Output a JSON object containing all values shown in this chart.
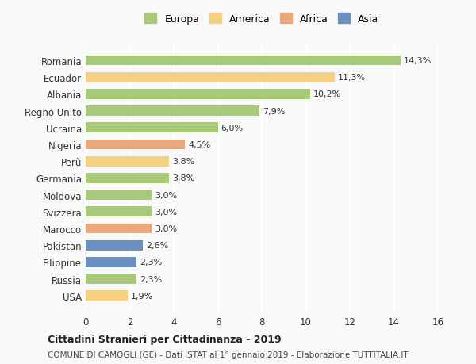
{
  "countries": [
    "Romania",
    "Ecuador",
    "Albania",
    "Regno Unito",
    "Ucraina",
    "Nigeria",
    "Perù",
    "Germania",
    "Moldova",
    "Svizzera",
    "Marocco",
    "Pakistan",
    "Filippine",
    "Russia",
    "USA"
  ],
  "values": [
    14.3,
    11.3,
    10.2,
    7.9,
    6.0,
    4.5,
    3.8,
    3.8,
    3.0,
    3.0,
    3.0,
    2.6,
    2.3,
    2.3,
    1.9
  ],
  "labels": [
    "14,3%",
    "11,3%",
    "10,2%",
    "7,9%",
    "6,0%",
    "4,5%",
    "3,8%",
    "3,8%",
    "3,0%",
    "3,0%",
    "3,0%",
    "2,6%",
    "2,3%",
    "2,3%",
    "1,9%"
  ],
  "continents": [
    "Europa",
    "America",
    "Europa",
    "Europa",
    "Europa",
    "Africa",
    "America",
    "Europa",
    "Europa",
    "Europa",
    "Africa",
    "Asia",
    "Asia",
    "Europa",
    "America"
  ],
  "colors": {
    "Europa": "#a8c87a",
    "America": "#f5d080",
    "Africa": "#e8a87c",
    "Asia": "#6b8fbf"
  },
  "legend_order": [
    "Europa",
    "America",
    "Africa",
    "Asia"
  ],
  "title": "Cittadini Stranieri per Cittadinanza - 2019",
  "subtitle": "COMUNE DI CAMOGLI (GE) - Dati ISTAT al 1° gennaio 2019 - Elaborazione TUTTITALIA.IT",
  "xlim": [
    0,
    16
  ],
  "xticks": [
    0,
    2,
    4,
    6,
    8,
    10,
    12,
    14,
    16
  ],
  "background_color": "#f9f9f9",
  "grid_color": "#ffffff",
  "bar_height": 0.6
}
